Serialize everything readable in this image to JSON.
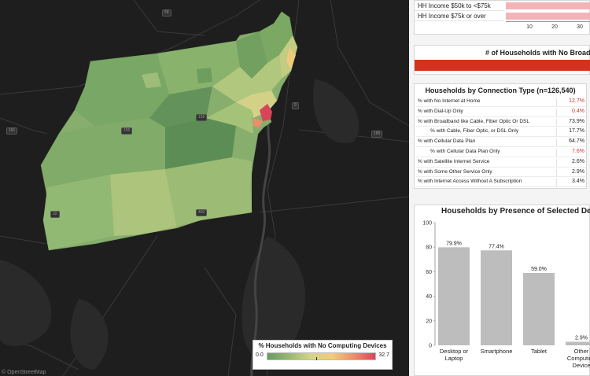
{
  "map": {
    "shields": [
      "59",
      "155",
      "155",
      "9",
      "161",
      "165",
      "402",
      "32"
    ],
    "credit": "© OpenStreetMap",
    "legend": {
      "title": "% Households with No Computing Devices",
      "min": "0.0",
      "max": "32.7",
      "marker_value": 14.8,
      "colors": {
        "low": "#6a9a63",
        "mid": "#d2d58a",
        "high": "#d8455a"
      }
    }
  },
  "income": {
    "rows": [
      {
        "label": "HH Income $50k to <$75k",
        "value": 37
      },
      {
        "label": "HH Income $75k or over",
        "value": 37
      }
    ],
    "ticks": [
      "10",
      "20",
      "30"
    ]
  },
  "no_broadband": {
    "title": "# of Households with No Broadband",
    "bar_color": "#d7301f"
  },
  "connection": {
    "title": "Households by Connection Type (n=126,540)",
    "rows": [
      {
        "label": "% with No Internet at Home",
        "value": "12.7%",
        "red": true,
        "indent": false
      },
      {
        "label": "% with Dial-Up Only",
        "value": "0.4%",
        "red": true,
        "indent": false
      },
      {
        "label": "% with Broadband like Cable, Fiber Optic Or DSL",
        "value": "73.9%",
        "red": false,
        "indent": false
      },
      {
        "label": "% with Cable, Fiber Optic, or DSL Only",
        "value": "17.7%",
        "red": false,
        "indent": true
      },
      {
        "label": "% with Cellular Data Plan",
        "value": "64.7%",
        "red": false,
        "indent": false
      },
      {
        "label": "% with Cellular Data Plan Only",
        "value": "7.6%",
        "red": true,
        "indent": true
      },
      {
        "label": "% with Satellite Internet Service",
        "value": "2.6%",
        "red": false,
        "indent": false
      },
      {
        "label": "% with Some Other Service Only",
        "value": "2.9%",
        "red": false,
        "indent": false
      },
      {
        "label": "% with Internet Access Without A Subscription",
        "value": "3.4%",
        "red": false,
        "indent": false
      }
    ]
  },
  "devices": {
    "title": "Households by Presence of Selected Devices",
    "chart_data": {
      "type": "bar",
      "categories": [
        "Desktop or Laptop",
        "Smartphone",
        "Tablet",
        "Other Computing Device"
      ],
      "values": [
        79.9,
        77.4,
        59.0,
        2.9
      ],
      "data_labels": [
        "79.9%",
        "77.4%",
        "59.0%",
        "2.9%"
      ],
      "yticks": [
        "0",
        "20",
        "40",
        "60",
        "80",
        "100"
      ],
      "ylim": [
        0,
        100
      ],
      "bar_color": "#bdbdbd"
    }
  }
}
